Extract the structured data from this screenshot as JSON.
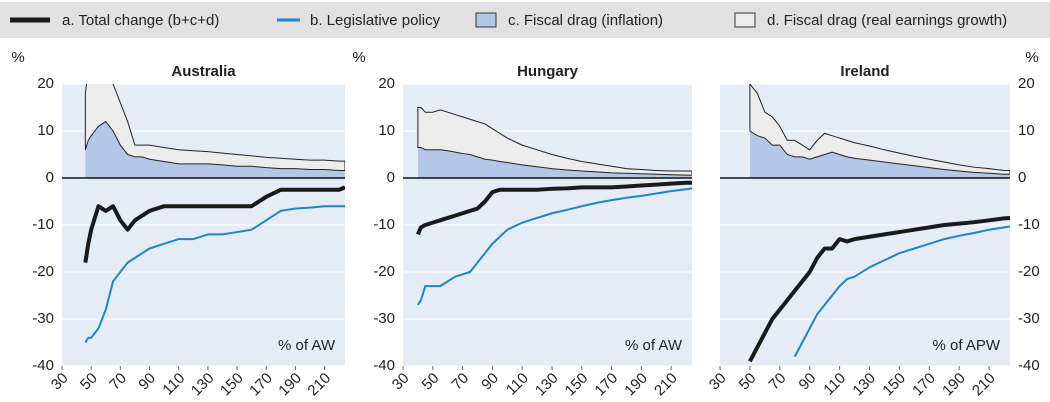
{
  "chart_data": [
    {
      "type": "line",
      "title": "Australia",
      "y_label": "%",
      "y_axis_side": "left",
      "annotation": "% of AW",
      "x": [
        46,
        48,
        50,
        55,
        60,
        65,
        70,
        75,
        80,
        85,
        90,
        100,
        110,
        120,
        130,
        140,
        150,
        160,
        170,
        180,
        190,
        200,
        210,
        220,
        224
      ],
      "series": [
        {
          "name": "a. Total change (b+c+d)",
          "type": "line",
          "color": "#1a1a1a",
          "values": [
            -18,
            -14,
            -11,
            -6,
            -7,
            -6,
            -9,
            -11,
            -9,
            -8,
            -7,
            -6,
            -6,
            -6,
            -6,
            -6,
            -6,
            -6,
            -4,
            -2.5,
            -2.5,
            -2.5,
            -2.5,
            -2.5,
            -2
          ]
        },
        {
          "name": "b. Legislative policy",
          "type": "line",
          "color": "#1a86cc",
          "values": [
            -35,
            -34,
            -34,
            -32,
            -28,
            -22,
            -20,
            -18,
            -17,
            -16,
            -15,
            -14,
            -13,
            -13,
            -12,
            -12,
            -11.5,
            -11,
            -9,
            -7,
            -6.5,
            -6.3,
            -6,
            -6,
            -6
          ]
        },
        {
          "name": "c. Fiscal drag (inflation)",
          "type": "area",
          "color": "#b4c7e8",
          "values": [
            6,
            8,
            9,
            11,
            12,
            10,
            7,
            5,
            4.5,
            4.5,
            4,
            3.5,
            3,
            3,
            3,
            2.8,
            2.5,
            2.5,
            2.2,
            2,
            2,
            1.8,
            1.8,
            1.6,
            1.6
          ]
        },
        {
          "name": "d. Fiscal drag (real earnings growth)",
          "type": "area",
          "color": "#ececec",
          "values": [
            12,
            15,
            13,
            10,
            9,
            10,
            9,
            7,
            2.5,
            2.5,
            3,
            3,
            3,
            2.8,
            2.6,
            2.5,
            2.5,
            2.2,
            2.2,
            2.2,
            2,
            2,
            2,
            2,
            2
          ]
        }
      ],
      "xlim": [
        30,
        224
      ],
      "ylim": [
        -40,
        20
      ],
      "xticks": [
        30,
        50,
        70,
        90,
        110,
        130,
        150,
        170,
        190,
        210
      ],
      "yticks": [
        -40,
        -30,
        -20,
        -10,
        0,
        10,
        20
      ]
    },
    {
      "type": "line",
      "title": "Hungary",
      "y_label": "%",
      "y_axis_side": "left",
      "annotation": "% of AW",
      "x": [
        40,
        42,
        45,
        50,
        55,
        60,
        65,
        70,
        75,
        80,
        85,
        90,
        95,
        100,
        110,
        120,
        130,
        140,
        150,
        160,
        170,
        180,
        190,
        200,
        210,
        220,
        224
      ],
      "series": [
        {
          "name": "a. Total change (b+c+d)",
          "type": "line",
          "color": "#1a1a1a",
          "values": [
            -12,
            -10.5,
            -10,
            -9.5,
            -9,
            -8.5,
            -8,
            -7.5,
            -7,
            -6.5,
            -5,
            -3,
            -2.5,
            -2.5,
            -2.5,
            -2.5,
            -2.3,
            -2.2,
            -2,
            -2,
            -2,
            -1.8,
            -1.6,
            -1.4,
            -1.2,
            -1,
            -1
          ]
        },
        {
          "name": "b. Legislative policy",
          "type": "line",
          "color": "#1a86cc",
          "values": [
            -27,
            -26,
            -23,
            -23,
            -23,
            -22,
            -21,
            -20.5,
            -20,
            -18,
            -16,
            -14,
            -12.5,
            -11,
            -9.5,
            -8.5,
            -7.5,
            -6.8,
            -6,
            -5.3,
            -4.7,
            -4.2,
            -3.8,
            -3.3,
            -2.8,
            -2.4,
            -2.2
          ]
        },
        {
          "name": "c. Fiscal drag (inflation)",
          "type": "area",
          "color": "#b4c7e8",
          "values": [
            6.5,
            6.5,
            6,
            6,
            6,
            5.8,
            5.5,
            5.2,
            5,
            4.5,
            4,
            3.8,
            3.5,
            3.3,
            2.8,
            2.4,
            2,
            1.7,
            1.5,
            1.3,
            1.1,
            1,
            0.9,
            0.8,
            0.7,
            0.6,
            0.6
          ]
        },
        {
          "name": "d. Fiscal drag (real earnings growth)",
          "type": "area",
          "color": "#ececec",
          "values": [
            8.5,
            8.5,
            8,
            8,
            8.5,
            8.2,
            8,
            7.8,
            7.5,
            7.5,
            7.5,
            6.7,
            6,
            5.2,
            4.2,
            3.6,
            3,
            2.5,
            2,
            1.7,
            1.4,
            1,
            0.9,
            0.8,
            0.8,
            0.9,
            0.9
          ]
        }
      ],
      "xlim": [
        30,
        224
      ],
      "ylim": [
        -40,
        20
      ],
      "xticks": [
        30,
        50,
        70,
        90,
        110,
        130,
        150,
        170,
        190,
        210
      ],
      "yticks": [
        -40,
        -30,
        -20,
        -10,
        0,
        10,
        20
      ]
    },
    {
      "type": "line",
      "title": "Ireland",
      "y_label": "%",
      "y_axis_side": "right",
      "annotation": "% of APW",
      "x": [
        50,
        55,
        60,
        65,
        70,
        75,
        80,
        85,
        90,
        95,
        100,
        105,
        110,
        115,
        120,
        130,
        140,
        150,
        160,
        170,
        180,
        190,
        200,
        210,
        220,
        224
      ],
      "series": [
        {
          "name": "a. Total change (b+c+d)",
          "type": "line",
          "color": "#1a1a1a",
          "values": [
            -39,
            -36,
            -33,
            -30,
            -28,
            -26,
            -24,
            -22,
            -20,
            -17,
            -15,
            -15,
            -13,
            -13.5,
            -13,
            -12.5,
            -12,
            -11.5,
            -11,
            -10.5,
            -10,
            -9.7,
            -9.4,
            -9,
            -8.6,
            -8.5
          ]
        },
        {
          "name": "b. Legislative policy",
          "type": "line",
          "color": "#1a86cc",
          "values": [
            null,
            null,
            null,
            null,
            null,
            null,
            -38,
            -35,
            -32,
            -29,
            -27,
            -25,
            -23,
            -21.5,
            -21,
            -19,
            -17.5,
            -16,
            -15,
            -14,
            -13,
            -12.3,
            -11.7,
            -11,
            -10.5,
            -10.3
          ]
        },
        {
          "name": "c. Fiscal drag (inflation)",
          "type": "area",
          "color": "#b4c7e8",
          "values": [
            10,
            9,
            8.5,
            7,
            7,
            5,
            4.5,
            4.5,
            4,
            4.5,
            5,
            5.5,
            5,
            4.5,
            4.2,
            3.8,
            3.4,
            3,
            2.6,
            2.2,
            1.8,
            1.5,
            1.2,
            1,
            0.8,
            0.8
          ]
        },
        {
          "name": "d. Fiscal drag (real earnings growth)",
          "type": "area",
          "color": "#ececec",
          "values": [
            10,
            9,
            5.5,
            6,
            4,
            3,
            3.5,
            2.5,
            2,
            3.5,
            4.5,
            3.5,
            3.5,
            3.5,
            3.3,
            3,
            2.6,
            2.3,
            2,
            1.8,
            1.6,
            1.3,
            1.1,
            1,
            0.8,
            0.8
          ]
        }
      ],
      "xlim": [
        30,
        224
      ],
      "ylim": [
        -40,
        20
      ],
      "xticks": [
        30,
        50,
        70,
        90,
        110,
        130,
        150,
        170,
        190,
        210
      ],
      "yticks": [
        -40,
        -30,
        -20,
        -10,
        0,
        10,
        20
      ]
    }
  ]
}
